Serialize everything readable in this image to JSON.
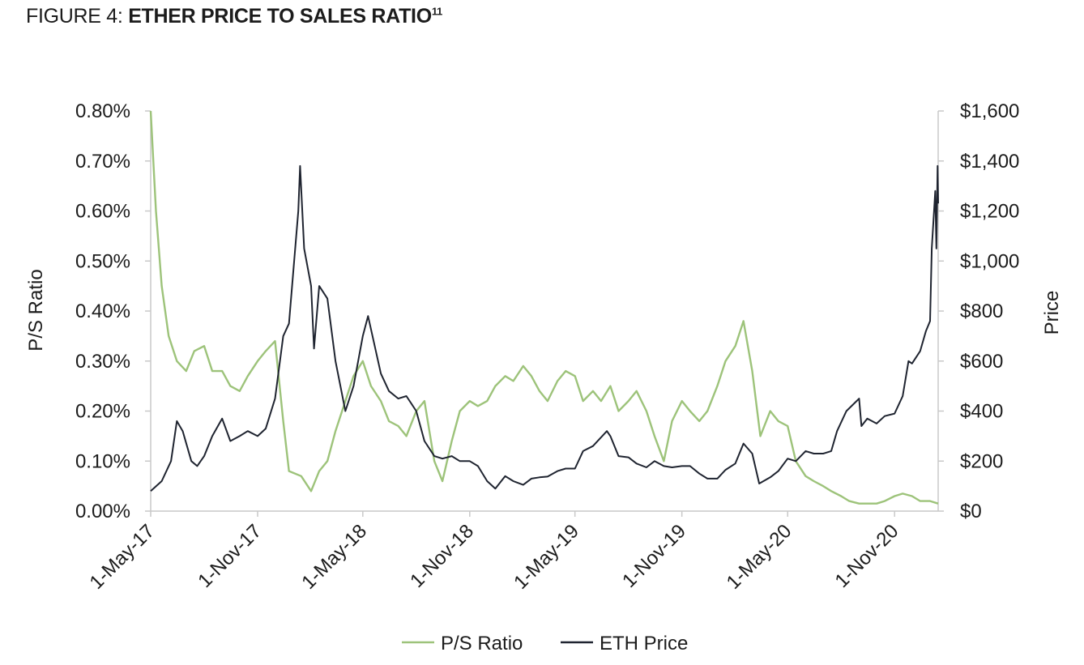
{
  "header": {
    "figure_label": "FIGURE 4: ",
    "figure_title": "ETHER PRICE TO SALES RATIO",
    "footnote": "11"
  },
  "chart_data": {
    "type": "line",
    "x_axis": {
      "ticks": [
        "1-May-17",
        "1-Nov-17",
        "1-May-18",
        "1-Nov-18",
        "1-May-19",
        "1-Nov-19",
        "1-May-20",
        "1-Nov-20"
      ],
      "range": [
        "1-May-17",
        "15-Jan-21"
      ]
    },
    "y_left": {
      "label": "P/S Ratio",
      "ticks": [
        "0.00%",
        "0.10%",
        "0.20%",
        "0.30%",
        "0.40%",
        "0.50%",
        "0.60%",
        "0.70%",
        "0.80%"
      ],
      "range": [
        0,
        0.8
      ],
      "unit": "%"
    },
    "y_right": {
      "label": "Price",
      "ticks": [
        "$0",
        "$200",
        "$400",
        "$600",
        "$800",
        "$1,000",
        "$1,200",
        "$1,400",
        "$1,600"
      ],
      "range": [
        0,
        1600
      ],
      "unit": "$"
    },
    "legend_position": "bottom",
    "series": [
      {
        "name": "P/S Ratio",
        "axis": "left",
        "color": "#9dc37a",
        "points": [
          [
            "1-May-17",
            0.8
          ],
          [
            "10-May-17",
            0.6
          ],
          [
            "20-May-17",
            0.45
          ],
          [
            "1-Jun-17",
            0.35
          ],
          [
            "15-Jun-17",
            0.3
          ],
          [
            "1-Jul-17",
            0.28
          ],
          [
            "15-Jul-17",
            0.32
          ],
          [
            "1-Aug-17",
            0.33
          ],
          [
            "15-Aug-17",
            0.28
          ],
          [
            "1-Sep-17",
            0.28
          ],
          [
            "15-Sep-17",
            0.25
          ],
          [
            "1-Oct-17",
            0.24
          ],
          [
            "15-Oct-17",
            0.27
          ],
          [
            "1-Nov-17",
            0.3
          ],
          [
            "15-Nov-17",
            0.32
          ],
          [
            "1-Dec-17",
            0.34
          ],
          [
            "15-Dec-17",
            0.18
          ],
          [
            "25-Dec-17",
            0.08
          ],
          [
            "15-Jan-18",
            0.07
          ],
          [
            "1-Feb-18",
            0.04
          ],
          [
            "15-Feb-18",
            0.08
          ],
          [
            "1-Mar-18",
            0.1
          ],
          [
            "15-Mar-18",
            0.16
          ],
          [
            "1-Apr-18",
            0.22
          ],
          [
            "15-Apr-18",
            0.27
          ],
          [
            "1-May-18",
            0.3
          ],
          [
            "15-May-18",
            0.25
          ],
          [
            "1-Jun-18",
            0.22
          ],
          [
            "15-Jun-18",
            0.18
          ],
          [
            "1-Jul-18",
            0.17
          ],
          [
            "15-Jul-18",
            0.15
          ],
          [
            "1-Aug-18",
            0.2
          ],
          [
            "15-Aug-18",
            0.22
          ],
          [
            "1-Sep-18",
            0.1
          ],
          [
            "15-Sep-18",
            0.06
          ],
          [
            "1-Oct-18",
            0.14
          ],
          [
            "15-Oct-18",
            0.2
          ],
          [
            "1-Nov-18",
            0.22
          ],
          [
            "15-Nov-18",
            0.21
          ],
          [
            "1-Dec-18",
            0.22
          ],
          [
            "15-Dec-18",
            0.25
          ],
          [
            "1-Jan-19",
            0.27
          ],
          [
            "15-Jan-19",
            0.26
          ],
          [
            "1-Feb-19",
            0.29
          ],
          [
            "15-Feb-19",
            0.27
          ],
          [
            "1-Mar-19",
            0.24
          ],
          [
            "15-Mar-19",
            0.22
          ],
          [
            "1-Apr-19",
            0.26
          ],
          [
            "15-Apr-19",
            0.28
          ],
          [
            "1-May-19",
            0.27
          ],
          [
            "15-May-19",
            0.22
          ],
          [
            "1-Jun-19",
            0.24
          ],
          [
            "15-Jun-19",
            0.22
          ],
          [
            "1-Jul-19",
            0.25
          ],
          [
            "15-Jul-19",
            0.2
          ],
          [
            "1-Aug-19",
            0.22
          ],
          [
            "15-Aug-19",
            0.24
          ],
          [
            "1-Sep-19",
            0.2
          ],
          [
            "15-Sep-19",
            0.15
          ],
          [
            "1-Oct-19",
            0.1
          ],
          [
            "15-Oct-19",
            0.18
          ],
          [
            "1-Nov-19",
            0.22
          ],
          [
            "15-Nov-19",
            0.2
          ],
          [
            "1-Dec-19",
            0.18
          ],
          [
            "15-Dec-19",
            0.2
          ],
          [
            "1-Jan-20",
            0.25
          ],
          [
            "15-Jan-20",
            0.3
          ],
          [
            "1-Feb-20",
            0.33
          ],
          [
            "15-Feb-20",
            0.38
          ],
          [
            "1-Mar-20",
            0.28
          ],
          [
            "15-Mar-20",
            0.15
          ],
          [
            "1-Apr-20",
            0.2
          ],
          [
            "15-Apr-20",
            0.18
          ],
          [
            "1-May-20",
            0.17
          ],
          [
            "15-May-20",
            0.1
          ],
          [
            "1-Jun-20",
            0.07
          ],
          [
            "15-Jun-20",
            0.06
          ],
          [
            "1-Jul-20",
            0.05
          ],
          [
            "15-Jul-20",
            0.04
          ],
          [
            "1-Aug-20",
            0.03
          ],
          [
            "15-Aug-20",
            0.02
          ],
          [
            "1-Sep-20",
            0.015
          ],
          [
            "1-Oct-20",
            0.015
          ],
          [
            "15-Oct-20",
            0.02
          ],
          [
            "1-Nov-20",
            0.03
          ],
          [
            "15-Nov-20",
            0.035
          ],
          [
            "1-Dec-20",
            0.03
          ],
          [
            "15-Dec-20",
            0.02
          ],
          [
            "1-Jan-21",
            0.02
          ],
          [
            "15-Jan-21",
            0.015
          ]
        ]
      },
      {
        "name": "ETH Price",
        "axis": "right",
        "color": "#1f2430",
        "points": [
          [
            "1-May-17",
            80
          ],
          [
            "20-May-17",
            120
          ],
          [
            "5-Jun-17",
            200
          ],
          [
            "15-Jun-17",
            360
          ],
          [
            "25-Jun-17",
            320
          ],
          [
            "10-Jul-17",
            200
          ],
          [
            "20-Jul-17",
            180
          ],
          [
            "1-Aug-17",
            220
          ],
          [
            "15-Aug-17",
            300
          ],
          [
            "1-Sep-17",
            370
          ],
          [
            "15-Sep-17",
            280
          ],
          [
            "1-Oct-17",
            300
          ],
          [
            "15-Oct-17",
            320
          ],
          [
            "1-Nov-17",
            300
          ],
          [
            "15-Nov-17",
            330
          ],
          [
            "1-Dec-17",
            450
          ],
          [
            "15-Dec-17",
            700
          ],
          [
            "25-Dec-17",
            750
          ],
          [
            "10-Jan-18",
            1200
          ],
          [
            "13-Jan-18",
            1380
          ],
          [
            "20-Jan-18",
            1050
          ],
          [
            "1-Feb-18",
            900
          ],
          [
            "6-Feb-18",
            650
          ],
          [
            "15-Feb-18",
            900
          ],
          [
            "1-Mar-18",
            850
          ],
          [
            "15-Mar-18",
            600
          ],
          [
            "1-Apr-18",
            400
          ],
          [
            "15-Apr-18",
            500
          ],
          [
            "1-May-18",
            700
          ],
          [
            "10-May-18",
            780
          ],
          [
            "1-Jun-18",
            550
          ],
          [
            "15-Jun-18",
            480
          ],
          [
            "1-Jul-18",
            450
          ],
          [
            "15-Jul-18",
            460
          ],
          [
            "1-Aug-18",
            400
          ],
          [
            "15-Aug-18",
            280
          ],
          [
            "1-Sep-18",
            220
          ],
          [
            "15-Sep-18",
            210
          ],
          [
            "1-Oct-18",
            220
          ],
          [
            "15-Oct-18",
            200
          ],
          [
            "1-Nov-18",
            200
          ],
          [
            "15-Nov-18",
            180
          ],
          [
            "1-Dec-18",
            120
          ],
          [
            "15-Dec-18",
            90
          ],
          [
            "1-Jan-19",
            140
          ],
          [
            "15-Jan-19",
            120
          ],
          [
            "1-Feb-19",
            105
          ],
          [
            "15-Feb-19",
            130
          ],
          [
            "1-Mar-19",
            135
          ],
          [
            "15-Mar-19",
            138
          ],
          [
            "1-Apr-19",
            160
          ],
          [
            "15-Apr-19",
            170
          ],
          [
            "1-May-19",
            170
          ],
          [
            "15-May-19",
            240
          ],
          [
            "1-Jun-19",
            260
          ],
          [
            "25-Jun-19",
            320
          ],
          [
            "1-Jul-19",
            300
          ],
          [
            "15-Jul-19",
            220
          ],
          [
            "1-Aug-19",
            215
          ],
          [
            "15-Aug-19",
            190
          ],
          [
            "1-Sep-19",
            175
          ],
          [
            "15-Sep-19",
            200
          ],
          [
            "1-Oct-19",
            180
          ],
          [
            "15-Oct-19",
            175
          ],
          [
            "1-Nov-19",
            180
          ],
          [
            "15-Nov-19",
            180
          ],
          [
            "1-Dec-19",
            150
          ],
          [
            "15-Dec-19",
            130
          ],
          [
            "1-Jan-20",
            130
          ],
          [
            "15-Jan-20",
            165
          ],
          [
            "1-Feb-20",
            190
          ],
          [
            "15-Feb-20",
            270
          ],
          [
            "1-Mar-20",
            230
          ],
          [
            "13-Mar-20",
            110
          ],
          [
            "1-Apr-20",
            135
          ],
          [
            "15-Apr-20",
            160
          ],
          [
            "1-May-20",
            210
          ],
          [
            "15-May-20",
            200
          ],
          [
            "1-Jun-20",
            240
          ],
          [
            "15-Jun-20",
            230
          ],
          [
            "1-Jul-20",
            230
          ],
          [
            "15-Jul-20",
            240
          ],
          [
            "25-Jul-20",
            320
          ],
          [
            "10-Aug-20",
            400
          ],
          [
            "1-Sep-20",
            450
          ],
          [
            "5-Sep-20",
            340
          ],
          [
            "15-Sep-20",
            370
          ],
          [
            "1-Oct-20",
            350
          ],
          [
            "15-Oct-20",
            380
          ],
          [
            "1-Nov-20",
            390
          ],
          [
            "15-Nov-20",
            460
          ],
          [
            "25-Nov-20",
            600
          ],
          [
            "1-Dec-20",
            590
          ],
          [
            "15-Dec-20",
            640
          ],
          [
            "25-Dec-20",
            720
          ],
          [
            "1-Jan-21",
            760
          ],
          [
            "4-Jan-21",
            1050
          ],
          [
            "10-Jan-21",
            1280
          ],
          [
            "12-Jan-21",
            1050
          ],
          [
            "14-Jan-21",
            1380
          ],
          [
            "15-Jan-21",
            1230
          ]
        ]
      }
    ]
  }
}
